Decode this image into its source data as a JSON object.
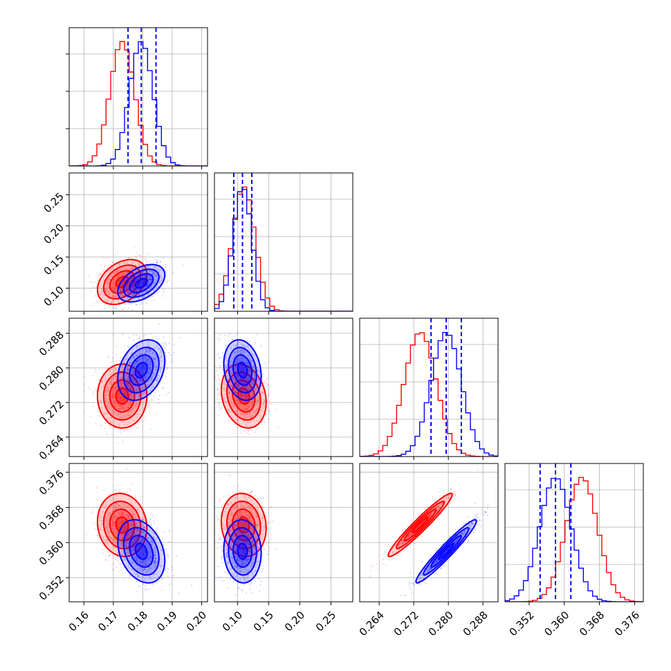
{
  "chart_data": {
    "type": "corner",
    "grid": true,
    "params": [
      {
        "range": [
          0.155,
          0.202
        ],
        "ticks": [
          0.16,
          0.17,
          0.18,
          0.19,
          0.2
        ],
        "tick_labels": [
          "0.16",
          "0.17",
          "0.18",
          "0.19",
          "0.20"
        ]
      },
      {
        "range": [
          0.063,
          0.285
        ],
        "ticks": [
          0.1,
          0.15,
          0.2,
          0.25
        ],
        "tick_labels": [
          "0.10",
          "0.15",
          "0.20",
          "0.25"
        ]
      },
      {
        "range": [
          0.2595,
          0.2915
        ],
        "ticks": [
          0.264,
          0.272,
          0.28,
          0.288
        ],
        "tick_labels": [
          "0.264",
          "0.272",
          "0.280",
          "0.288"
        ]
      },
      {
        "range": [
          0.3465,
          0.378
        ],
        "ticks": [
          0.352,
          0.36,
          0.368,
          0.376
        ],
        "tick_labels": [
          "0.352",
          "0.360",
          "0.368",
          "0.376"
        ]
      }
    ],
    "series": [
      {
        "color": "#ff0000",
        "mean": [
          0.173,
          0.11,
          0.2735,
          0.364
        ],
        "std": [
          0.0042,
          0.018,
          0.0037,
          0.0036
        ],
        "corr": {
          "0-1": 0.35,
          "0-2": 0.0,
          "0-3": -0.1,
          "1-2": -0.2,
          "1-3": -0.1,
          "2-3": 0.96
        }
      },
      {
        "color": "#0000ff",
        "mean": [
          0.1795,
          0.108,
          0.2795,
          0.358
        ],
        "std": [
          0.004,
          0.015,
          0.0035,
          0.0036
        ],
        "corr": {
          "0-1": 0.45,
          "0-2": 0.3,
          "0-3": -0.3,
          "1-2": -0.2,
          "1-3": -0.05,
          "2-3": 0.96
        }
      }
    ],
    "quantiles": {
      "color": "#0000ff",
      "values": [
        [
          0.175,
          0.1795,
          0.1845
        ],
        [
          0.094,
          0.108,
          0.123
        ],
        [
          0.276,
          0.2795,
          0.283
        ],
        [
          0.3545,
          0.358,
          0.3615
        ]
      ]
    }
  }
}
